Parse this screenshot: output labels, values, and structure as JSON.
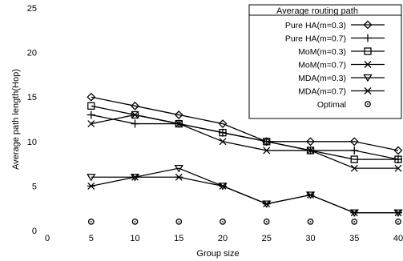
{
  "chart_data": {
    "type": "line",
    "title": "",
    "xlabel": "Group size",
    "ylabel": "Average path length(Hop)",
    "x": [
      5,
      10,
      15,
      20,
      25,
      30,
      35,
      40
    ],
    "xlim": [
      0,
      40
    ],
    "ylim": [
      0,
      25
    ],
    "xticks": [
      0,
      5,
      10,
      15,
      20,
      25,
      30,
      35,
      40
    ],
    "yticks": [
      0,
      5,
      10,
      15,
      20,
      25
    ],
    "grid": false,
    "legend_title": "Average routing path",
    "legend_position": "top-right",
    "series": [
      {
        "name": "Pure HA(m=0.3)",
        "marker": "diamond",
        "values": [
          15,
          14,
          13,
          12,
          10,
          10,
          10,
          9
        ]
      },
      {
        "name": "Pure HA(m=0.7)",
        "marker": "plus",
        "values": [
          13,
          12,
          12,
          11,
          10,
          9,
          9,
          8
        ]
      },
      {
        "name": "MoM(m=0.3)",
        "marker": "square",
        "values": [
          14,
          13,
          12,
          11,
          10,
          9,
          8,
          8
        ]
      },
      {
        "name": "MoM(m=0.7)",
        "marker": "x",
        "values": [
          12,
          13,
          12,
          10,
          9,
          9,
          7,
          7
        ]
      },
      {
        "name": "MDA(m=0.3)",
        "marker": "triangle-down",
        "values": [
          6,
          6,
          7,
          5,
          3,
          4,
          2,
          2
        ]
      },
      {
        "name": "MDA(m=0.7)",
        "marker": "star",
        "values": [
          5,
          6,
          6,
          5,
          3,
          4,
          2,
          2
        ]
      },
      {
        "name": "Optimal",
        "marker": "circle-dot",
        "values": [
          1,
          1,
          1,
          1,
          1,
          1,
          1,
          1
        ]
      }
    ]
  }
}
